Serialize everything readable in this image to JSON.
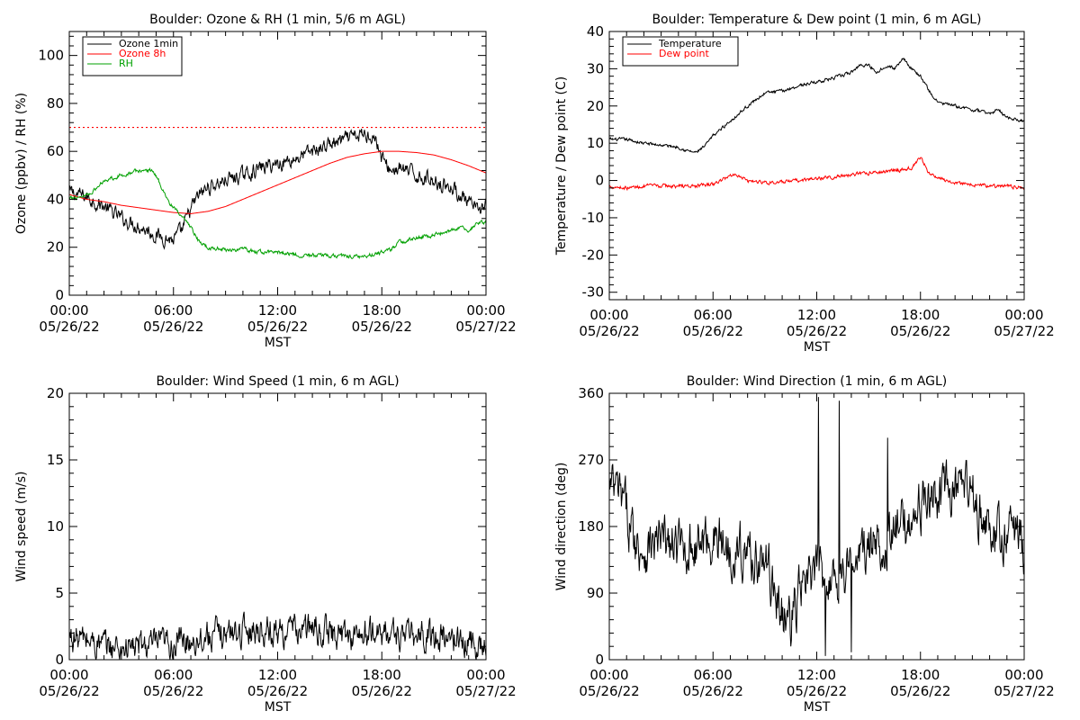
{
  "chart_data": [
    {
      "id": "ozone_rh",
      "type": "line",
      "title": "Boulder: Ozone & RH (1 min, 5/6 m AGL)",
      "ylabel": "Ozone (ppbv) / RH (%)",
      "xlabel": "MST",
      "x_ticks": [
        {
          "time": "00:00",
          "date": "05/26/22",
          "hour": 0
        },
        {
          "time": "06:00",
          "date": "05/26/22",
          "hour": 6
        },
        {
          "time": "12:00",
          "date": "05/26/22",
          "hour": 12
        },
        {
          "time": "18:00",
          "date": "05/26/22",
          "hour": 18
        },
        {
          "time": "00:00",
          "date": "05/27/22",
          "hour": 24
        }
      ],
      "xlim": [
        0,
        24
      ],
      "ylim": [
        0,
        110
      ],
      "y_ticks": [
        0,
        20,
        40,
        60,
        80,
        100
      ],
      "legend_position": "top-left",
      "reference_lines": [
        {
          "y": 70,
          "color": "#ff0000",
          "style": "dotted"
        }
      ],
      "series": [
        {
          "name": "Ozone 1min",
          "color": "#000000",
          "noise": 2.5,
          "points": [
            [
              0,
              43
            ],
            [
              1,
              41
            ],
            [
              2,
              37
            ],
            [
              3,
              32
            ],
            [
              4,
              29
            ],
            [
              4.5,
              27
            ],
            [
              5,
              25
            ],
            [
              5.5,
              24
            ],
            [
              6,
              23
            ],
            [
              6.5,
              27
            ],
            [
              7,
              36
            ],
            [
              7.5,
              42
            ],
            [
              8,
              45
            ],
            [
              9,
              48
            ],
            [
              10,
              50
            ],
            [
              11,
              53
            ],
            [
              12,
              55
            ],
            [
              13,
              57
            ],
            [
              14,
              60
            ],
            [
              15,
              63
            ],
            [
              16,
              65
            ],
            [
              17,
              67
            ],
            [
              17.5,
              67
            ],
            [
              17.8,
              62
            ],
            [
              18,
              57
            ],
            [
              18.5,
              52
            ],
            [
              19,
              53
            ],
            [
              20,
              50
            ],
            [
              21,
              48
            ],
            [
              22,
              45
            ],
            [
              22.5,
              42
            ],
            [
              23,
              38
            ],
            [
              23.5,
              35
            ],
            [
              24,
              38
            ]
          ]
        },
        {
          "name": "Ozone 8h",
          "color": "#ff0000",
          "noise": 0,
          "points": [
            [
              0,
              42
            ],
            [
              1,
              40
            ],
            [
              2,
              39
            ],
            [
              3,
              37.5
            ],
            [
              4,
              36.5
            ],
            [
              5,
              35.5
            ],
            [
              6,
              34.5
            ],
            [
              7,
              34
            ],
            [
              8,
              35
            ],
            [
              9,
              37
            ],
            [
              10,
              40
            ],
            [
              11,
              43
            ],
            [
              12,
              46
            ],
            [
              13,
              49
            ],
            [
              14,
              52
            ],
            [
              15,
              55
            ],
            [
              16,
              57.5
            ],
            [
              17,
              59
            ],
            [
              18,
              60
            ],
            [
              19,
              60
            ],
            [
              20,
              59.5
            ],
            [
              21,
              58.5
            ],
            [
              22,
              56.5
            ],
            [
              23,
              54
            ],
            [
              24,
              51
            ]
          ]
        },
        {
          "name": "RH",
          "color": "#00a000",
          "noise": 0.7,
          "points": [
            [
              0,
              40
            ],
            [
              1,
              42
            ],
            [
              1.5,
              44
            ],
            [
              2,
              48
            ],
            [
              3,
              50
            ],
            [
              4,
              52
            ],
            [
              4.8,
              52
            ],
            [
              5.2,
              47
            ],
            [
              5.8,
              38
            ],
            [
              6.3,
              34
            ],
            [
              7,
              28
            ],
            [
              7.5,
              22
            ],
            [
              8,
              20
            ],
            [
              9,
              19
            ],
            [
              10,
              19
            ],
            [
              11,
              18
            ],
            [
              12,
              18
            ],
            [
              13,
              17
            ],
            [
              14,
              16.5
            ],
            [
              15,
              16.5
            ],
            [
              16,
              16.5
            ],
            [
              17,
              16
            ],
            [
              17.5,
              17
            ],
            [
              18,
              18
            ],
            [
              18.5,
              19
            ],
            [
              19,
              22
            ],
            [
              20,
              24
            ],
            [
              21,
              25
            ],
            [
              22,
              27
            ],
            [
              22.5,
              28
            ],
            [
              23,
              27
            ],
            [
              23.5,
              30
            ],
            [
              24,
              30
            ]
          ]
        }
      ]
    },
    {
      "id": "temp_dew",
      "type": "line",
      "title": "Boulder: Temperature & Dew point (1 min, 6 m AGL)",
      "ylabel": "Temperature / Dew point (C)",
      "xlabel": "MST",
      "x_ticks": [
        {
          "time": "00:00",
          "date": "05/26/22",
          "hour": 0
        },
        {
          "time": "06:00",
          "date": "05/26/22",
          "hour": 6
        },
        {
          "time": "12:00",
          "date": "05/26/22",
          "hour": 12
        },
        {
          "time": "18:00",
          "date": "05/26/22",
          "hour": 18
        },
        {
          "time": "00:00",
          "date": "05/27/22",
          "hour": 24
        }
      ],
      "xlim": [
        0,
        24
      ],
      "ylim": [
        -32,
        40
      ],
      "y_ticks": [
        -30,
        -20,
        -10,
        0,
        10,
        20,
        30,
        40
      ],
      "legend_position": "top-left",
      "reference_lines": [],
      "series": [
        {
          "name": "Temperature",
          "color": "#000000",
          "noise": 0.35,
          "points": [
            [
              0,
              11
            ],
            [
              1,
              11
            ],
            [
              2,
              10
            ],
            [
              3,
              9.5
            ],
            [
              4,
              9
            ],
            [
              4.5,
              8
            ],
            [
              5,
              7.5
            ],
            [
              5.5,
              9
            ],
            [
              6,
              12
            ],
            [
              7,
              16
            ],
            [
              8,
              20
            ],
            [
              9,
              23.5
            ],
            [
              10,
              24
            ],
            [
              11,
              25.5
            ],
            [
              12,
              26.5
            ],
            [
              13,
              27.5
            ],
            [
              14,
              29
            ],
            [
              14.5,
              31
            ],
            [
              15,
              31
            ],
            [
              15.5,
              29
            ],
            [
              16,
              31
            ],
            [
              16.5,
              30
            ],
            [
              17,
              33
            ],
            [
              17.5,
              30
            ],
            [
              18,
              28
            ],
            [
              18.5,
              24
            ],
            [
              19,
              21
            ],
            [
              20,
              20
            ],
            [
              21,
              19
            ],
            [
              22,
              18
            ],
            [
              22.5,
              19
            ],
            [
              23,
              17
            ],
            [
              24,
              16
            ]
          ]
        },
        {
          "name": "Dew point",
          "color": "#ff0000",
          "noise": 0.4,
          "points": [
            [
              0,
              -1.5
            ],
            [
              1,
              -2
            ],
            [
              2,
              -1.5
            ],
            [
              3,
              -1.5
            ],
            [
              4,
              -1.5
            ],
            [
              5,
              -1.5
            ],
            [
              6,
              -1
            ],
            [
              6.5,
              0
            ],
            [
              7,
              1.5
            ],
            [
              7.5,
              1.5
            ],
            [
              8,
              0
            ],
            [
              9,
              -0.5
            ],
            [
              10,
              -0.5
            ],
            [
              11,
              0
            ],
            [
              12,
              0.5
            ],
            [
              13,
              1
            ],
            [
              14,
              1.5
            ],
            [
              15,
              2
            ],
            [
              16,
              2.5
            ],
            [
              17,
              3
            ],
            [
              17.5,
              3.5
            ],
            [
              18,
              6
            ],
            [
              18.5,
              2
            ],
            [
              19,
              0.5
            ],
            [
              20,
              -0.5
            ],
            [
              21,
              -1
            ],
            [
              22,
              -1.5
            ],
            [
              23,
              -1.5
            ],
            [
              24,
              -2
            ]
          ]
        }
      ]
    },
    {
      "id": "wind_speed",
      "type": "line",
      "title": "Boulder: Wind Speed (1 min, 6 m AGL)",
      "ylabel": "Wind speed (m/s)",
      "xlabel": "MST",
      "x_ticks": [
        {
          "time": "00:00",
          "date": "05/26/22",
          "hour": 0
        },
        {
          "time": "06:00",
          "date": "05/26/22",
          "hour": 6
        },
        {
          "time": "12:00",
          "date": "05/26/22",
          "hour": 12
        },
        {
          "time": "18:00",
          "date": "05/26/22",
          "hour": 18
        },
        {
          "time": "00:00",
          "date": "05/27/22",
          "hour": 24
        }
      ],
      "xlim": [
        0,
        24
      ],
      "ylim": [
        0,
        20
      ],
      "y_ticks": [
        0,
        5,
        10,
        15,
        20
      ],
      "legend_position": "none",
      "reference_lines": [],
      "series": [
        {
          "name": "",
          "color": "#000000",
          "noise": 0.9,
          "floor": 0,
          "points": [
            [
              0,
              1.7
            ],
            [
              1,
              1.5
            ],
            [
              2,
              1.0
            ],
            [
              3,
              0.9
            ],
            [
              4,
              1.0
            ],
            [
              5,
              1.1
            ],
            [
              6,
              1.2
            ],
            [
              7,
              1.5
            ],
            [
              8,
              1.8
            ],
            [
              9,
              2.0
            ],
            [
              10,
              2.2
            ],
            [
              11,
              2.3
            ],
            [
              12,
              2.1
            ],
            [
              13,
              2.2
            ],
            [
              14,
              2.3
            ],
            [
              15,
              2.0
            ],
            [
              16,
              1.8
            ],
            [
              17,
              1.9
            ],
            [
              18,
              2.0
            ],
            [
              19,
              1.9
            ],
            [
              20,
              1.7
            ],
            [
              21,
              1.8
            ],
            [
              22,
              1.6
            ],
            [
              23,
              1.3
            ],
            [
              24,
              1.0
            ]
          ]
        }
      ]
    },
    {
      "id": "wind_dir",
      "type": "line",
      "title": "Boulder: Wind Direction (1 min, 6 m AGL)",
      "ylabel": "Wind direction (deg)",
      "xlabel": "MST",
      "x_ticks": [
        {
          "time": "00:00",
          "date": "05/26/22",
          "hour": 0
        },
        {
          "time": "06:00",
          "date": "05/26/22",
          "hour": 6
        },
        {
          "time": "12:00",
          "date": "05/26/22",
          "hour": 12
        },
        {
          "time": "18:00",
          "date": "05/26/22",
          "hour": 18
        },
        {
          "time": "00:00",
          "date": "05/27/22",
          "hour": 24
        }
      ],
      "xlim": [
        0,
        24
      ],
      "ylim": [
        0,
        360
      ],
      "y_ticks": [
        0,
        90,
        180,
        270,
        360
      ],
      "legend_position": "none",
      "reference_lines": [],
      "series": [
        {
          "name": "",
          "color": "#000000",
          "noise": 28,
          "floor": 0,
          "ceil": 360,
          "spikes": [
            [
              12.1,
              355
            ],
            [
              13.3,
              350
            ],
            [
              16.1,
              300
            ],
            [
              12.5,
              5
            ],
            [
              14.0,
              10
            ]
          ],
          "points": [
            [
              0,
              230
            ],
            [
              0.5,
              225
            ],
            [
              1,
              200
            ],
            [
              1.5,
              160
            ],
            [
              2,
              150
            ],
            [
              3,
              160
            ],
            [
              4,
              150
            ],
            [
              5,
              155
            ],
            [
              6,
              165
            ],
            [
              7,
              150
            ],
            [
              8,
              145
            ],
            [
              9,
              130
            ],
            [
              9.5,
              100
            ],
            [
              10,
              60
            ],
            [
              10.5,
              50
            ],
            [
              11,
              90
            ],
            [
              12,
              120
            ],
            [
              13,
              110
            ],
            [
              14,
              130
            ],
            [
              15,
              150
            ],
            [
              16,
              160
            ],
            [
              17,
              180
            ],
            [
              18,
              210
            ],
            [
              19,
              220
            ],
            [
              20,
              230
            ],
            [
              21,
              225
            ],
            [
              21.5,
              200
            ],
            [
              22,
              160
            ],
            [
              23,
              170
            ],
            [
              23.5,
              180
            ],
            [
              24,
              150
            ]
          ]
        }
      ]
    }
  ]
}
